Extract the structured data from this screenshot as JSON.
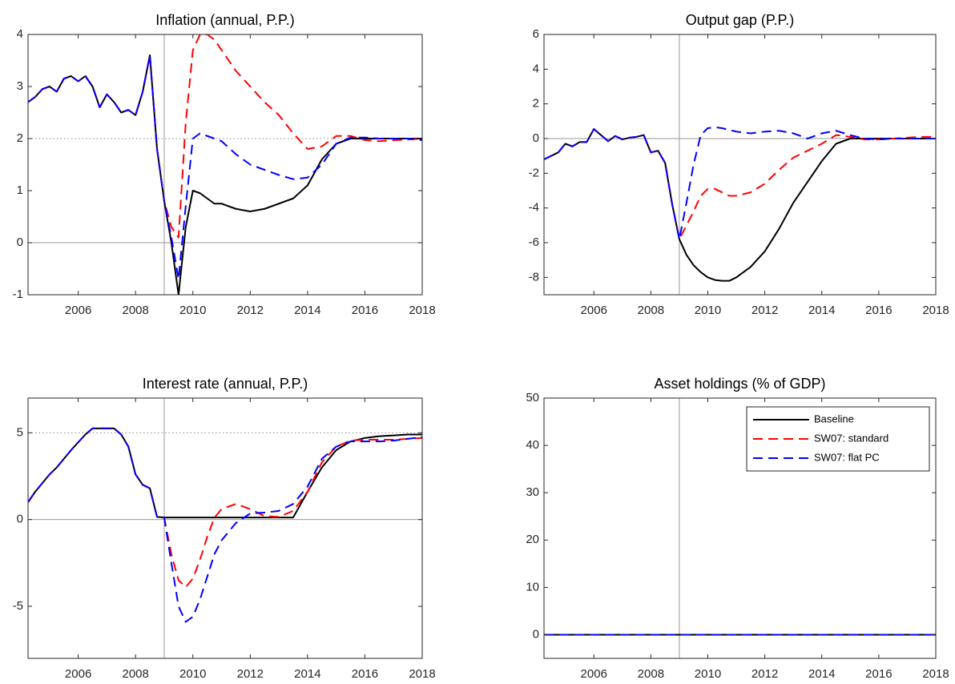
{
  "chart_data": [
    {
      "type": "line",
      "title": "Inflation (annual, P.P.)",
      "x": [
        2004.25,
        2004.5,
        2004.75,
        2005,
        2005.25,
        2005.5,
        2005.75,
        2006,
        2006.25,
        2006.5,
        2006.75,
        2007,
        2007.25,
        2007.5,
        2007.75,
        2008,
        2008.25,
        2008.5,
        2008.75,
        2009,
        2009.25,
        2009.5,
        2009.75,
        2010,
        2010.25,
        2010.5,
        2010.75,
        2011,
        2011.5,
        2012,
        2012.5,
        2013,
        2013.5,
        2014,
        2014.5,
        2015,
        2015.5,
        2016,
        2016.5,
        2017,
        2017.5,
        2018
      ],
      "xlim": [
        2004.25,
        2018
      ],
      "xticks": [
        2006,
        2008,
        2010,
        2012,
        2014,
        2016,
        2018
      ],
      "ylim": [
        -1,
        4
      ],
      "yticks": [
        -1,
        0,
        1,
        2,
        3,
        4
      ],
      "vline": 2009,
      "hlines": [
        {
          "value": 2,
          "style": "dotted"
        },
        {
          "value": 0,
          "style": "solid"
        }
      ],
      "series": [
        {
          "color": "#000000",
          "dash": "solid",
          "values": [
            2.7,
            2.8,
            2.95,
            3.0,
            2.9,
            3.15,
            3.2,
            3.1,
            3.2,
            3.0,
            2.6,
            2.85,
            2.7,
            2.5,
            2.55,
            2.45,
            2.9,
            3.6,
            1.8,
            0.8,
            0.0,
            -1.0,
            0.3,
            1.0,
            0.95,
            0.85,
            0.75,
            0.75,
            0.65,
            0.6,
            0.65,
            0.75,
            0.85,
            1.1,
            1.6,
            1.9,
            2.0,
            2.0,
            2.0,
            2.0,
            2.0,
            2.0
          ]
        },
        {
          "color": "#ff0000",
          "dash": "dashed",
          "values": [
            2.7,
            2.8,
            2.95,
            3.0,
            2.9,
            3.15,
            3.2,
            3.1,
            3.2,
            3.0,
            2.6,
            2.85,
            2.7,
            2.5,
            2.55,
            2.45,
            2.9,
            3.6,
            1.8,
            0.8,
            0.3,
            0.1,
            2.3,
            3.7,
            4.0,
            4.0,
            3.9,
            3.7,
            3.3,
            3.0,
            2.7,
            2.45,
            2.1,
            1.8,
            1.85,
            2.05,
            2.05,
            1.97,
            1.95,
            1.97,
            1.98,
            2.0
          ]
        },
        {
          "color": "#0000ff",
          "dash": "dashed",
          "values": [
            2.7,
            2.8,
            2.95,
            3.0,
            2.9,
            3.15,
            3.2,
            3.1,
            3.2,
            3.0,
            2.6,
            2.85,
            2.7,
            2.5,
            2.55,
            2.45,
            2.9,
            3.6,
            1.8,
            0.8,
            0.1,
            -0.7,
            0.7,
            2.0,
            2.1,
            2.05,
            2.0,
            1.95,
            1.7,
            1.5,
            1.4,
            1.3,
            1.22,
            1.25,
            1.5,
            1.9,
            2.02,
            2.02,
            2.0,
            2.0,
            2.0,
            1.97
          ]
        }
      ]
    },
    {
      "type": "line",
      "title": "Output gap (P.P.)",
      "x": [
        2004.25,
        2004.5,
        2004.75,
        2005,
        2005.25,
        2005.5,
        2005.75,
        2006,
        2006.25,
        2006.5,
        2006.75,
        2007,
        2007.25,
        2007.5,
        2007.75,
        2008,
        2008.25,
        2008.5,
        2008.75,
        2009,
        2009.25,
        2009.5,
        2009.75,
        2010,
        2010.25,
        2010.5,
        2010.75,
        2011,
        2011.5,
        2012,
        2012.5,
        2013,
        2013.5,
        2014,
        2014.5,
        2015,
        2015.5,
        2016,
        2016.5,
        2017,
        2017.5,
        2018
      ],
      "xlim": [
        2004.25,
        2018
      ],
      "xticks": [
        2006,
        2008,
        2010,
        2012,
        2014,
        2016,
        2018
      ],
      "ylim": [
        -9,
        6
      ],
      "yticks": [
        -8,
        -6,
        -4,
        -2,
        0,
        2,
        4,
        6
      ],
      "vline": 2009,
      "hlines": [
        {
          "value": 0,
          "style": "solid"
        }
      ],
      "series": [
        {
          "color": "#000000",
          "dash": "solid",
          "values": [
            -1.2,
            -1.0,
            -0.8,
            -0.3,
            -0.45,
            -0.2,
            -0.2,
            0.55,
            0.2,
            -0.15,
            0.15,
            -0.05,
            0.05,
            0.1,
            0.2,
            -0.8,
            -0.7,
            -1.4,
            -3.8,
            -5.8,
            -6.7,
            -7.3,
            -7.7,
            -8.0,
            -8.15,
            -8.2,
            -8.2,
            -8.0,
            -7.4,
            -6.5,
            -5.2,
            -3.7,
            -2.5,
            -1.3,
            -0.3,
            0,
            0,
            0,
            0,
            0,
            0,
            0
          ]
        },
        {
          "color": "#ff0000",
          "dash": "dashed",
          "values": [
            -1.2,
            -1.0,
            -0.8,
            -0.3,
            -0.45,
            -0.2,
            -0.2,
            0.55,
            0.2,
            -0.15,
            0.15,
            -0.05,
            0.05,
            0.1,
            0.2,
            -0.8,
            -0.7,
            -1.4,
            -3.8,
            -5.8,
            -5.0,
            -4.2,
            -3.3,
            -2.9,
            -2.9,
            -3.1,
            -3.3,
            -3.3,
            -3.1,
            -2.6,
            -1.8,
            -1.1,
            -0.7,
            -0.3,
            0.2,
            0.1,
            -0.05,
            -0.05,
            0.0,
            0.05,
            0.1,
            0.1
          ]
        },
        {
          "color": "#0000ff",
          "dash": "dashed",
          "values": [
            -1.2,
            -1.0,
            -0.8,
            -0.3,
            -0.45,
            -0.2,
            -0.2,
            0.55,
            0.2,
            -0.15,
            0.15,
            -0.05,
            0.05,
            0.1,
            0.2,
            -0.8,
            -0.7,
            -1.4,
            -3.8,
            -5.8,
            -3.7,
            -1.5,
            0.2,
            0.6,
            0.65,
            0.6,
            0.5,
            0.4,
            0.3,
            0.4,
            0.45,
            0.3,
            0.0,
            0.3,
            0.45,
            0.2,
            0.0,
            -0.05,
            0.0,
            0.0,
            0.0,
            0.0
          ]
        }
      ]
    },
    {
      "type": "line",
      "title": "Interest rate (annual, P.P.)",
      "x": [
        2004.25,
        2004.5,
        2004.75,
        2005,
        2005.25,
        2005.5,
        2005.75,
        2006,
        2006.25,
        2006.5,
        2006.75,
        2007,
        2007.25,
        2007.5,
        2007.75,
        2008,
        2008.25,
        2008.5,
        2008.75,
        2009,
        2009.25,
        2009.5,
        2009.75,
        2010,
        2010.25,
        2010.5,
        2010.75,
        2011,
        2011.5,
        2012,
        2012.5,
        2013,
        2013.5,
        2014,
        2014.5,
        2015,
        2015.5,
        2016,
        2016.5,
        2017,
        2017.5,
        2018
      ],
      "xlim": [
        2004.25,
        2018
      ],
      "xticks": [
        2006,
        2008,
        2010,
        2012,
        2014,
        2016,
        2018
      ],
      "ylim": [
        -8,
        7
      ],
      "yticks": [
        -5,
        0,
        5
      ],
      "vline": 2009,
      "hlines": [
        {
          "value": 5,
          "style": "dotted"
        },
        {
          "value": 0,
          "style": "solid"
        }
      ],
      "series": [
        {
          "color": "#000000",
          "dash": "solid",
          "values": [
            1.0,
            1.6,
            2.1,
            2.6,
            3.0,
            3.5,
            4.0,
            4.45,
            4.9,
            5.25,
            5.25,
            5.25,
            5.25,
            4.9,
            4.2,
            2.6,
            2.0,
            1.8,
            0.15,
            0.12,
            0.12,
            0.12,
            0.12,
            0.12,
            0.12,
            0.12,
            0.12,
            0.12,
            0.12,
            0.12,
            0.12,
            0.12,
            0.12,
            1.6,
            3.0,
            4.0,
            4.5,
            4.7,
            4.8,
            4.85,
            4.9,
            4.9
          ]
        },
        {
          "color": "#ff0000",
          "dash": "dashed",
          "values": [
            1.0,
            1.6,
            2.1,
            2.6,
            3.0,
            3.5,
            4.0,
            4.45,
            4.9,
            5.25,
            5.25,
            5.25,
            5.25,
            4.9,
            4.2,
            2.6,
            2.0,
            1.8,
            0.15,
            0.1,
            -2.0,
            -3.5,
            -3.9,
            -3.4,
            -2.3,
            -1.0,
            0.1,
            0.6,
            0.9,
            0.6,
            0.2,
            0.15,
            0.5,
            1.6,
            3.3,
            4.2,
            4.55,
            4.6,
            4.6,
            4.6,
            4.65,
            4.7
          ]
        },
        {
          "color": "#0000ff",
          "dash": "dashed",
          "values": [
            1.0,
            1.6,
            2.1,
            2.6,
            3.0,
            3.5,
            4.0,
            4.45,
            4.9,
            5.25,
            5.25,
            5.25,
            5.25,
            4.9,
            4.2,
            2.6,
            2.0,
            1.8,
            0.15,
            0.1,
            -2.5,
            -5.0,
            -5.9,
            -5.6,
            -4.6,
            -3.3,
            -2.0,
            -1.2,
            -0.2,
            0.35,
            0.4,
            0.5,
            0.9,
            1.9,
            3.5,
            4.2,
            4.5,
            4.5,
            4.5,
            4.55,
            4.65,
            4.75
          ]
        }
      ]
    },
    {
      "type": "line",
      "title": "Asset holdings (% of GDP)",
      "x": [
        2004.25,
        2004.5,
        2004.75,
        2005,
        2005.25,
        2005.5,
        2005.75,
        2006,
        2006.25,
        2006.5,
        2006.75,
        2007,
        2007.25,
        2007.5,
        2007.75,
        2008,
        2008.25,
        2008.5,
        2008.75,
        2009,
        2009.25,
        2009.5,
        2009.75,
        2010,
        2010.25,
        2010.5,
        2010.75,
        2011,
        2011.5,
        2012,
        2012.5,
        2013,
        2013.5,
        2014,
        2014.5,
        2015,
        2015.5,
        2016,
        2016.5,
        2017,
        2017.5,
        2018
      ],
      "xlim": [
        2004.25,
        2018
      ],
      "xticks": [
        2006,
        2008,
        2010,
        2012,
        2014,
        2016,
        2018
      ],
      "ylim": [
        -5,
        50
      ],
      "yticks": [
        0,
        10,
        20,
        30,
        40,
        50
      ],
      "vline": 2009,
      "hlines": [
        {
          "value": 0,
          "style": "solid"
        }
      ],
      "legend": "upper right",
      "series": [
        {
          "name": "Baseline",
          "color": "#000000",
          "dash": "solid",
          "values": [
            0,
            0,
            0,
            0,
            0,
            0,
            0,
            0,
            0,
            0,
            0,
            0,
            0,
            0,
            0,
            0,
            0,
            0,
            0,
            0,
            0,
            0,
            0,
            0,
            0,
            0,
            0,
            0,
            0,
            0,
            0,
            0,
            0,
            0,
            0,
            0,
            0,
            0,
            0,
            0,
            0,
            0
          ]
        },
        {
          "name": "SW07: standard",
          "color": "#ff0000",
          "dash": "dashed",
          "values": [
            0,
            0,
            0,
            0,
            0,
            0,
            0,
            0,
            0,
            0,
            0,
            0,
            0,
            0,
            0,
            0,
            0,
            0,
            0,
            0,
            0,
            0,
            0,
            0,
            0,
            0,
            0,
            0,
            0,
            0,
            0,
            0,
            0,
            0,
            0,
            0,
            0,
            0,
            0,
            0,
            0,
            0
          ]
        },
        {
          "name": "SW07: flat PC",
          "color": "#0000ff",
          "dash": "dashed",
          "values": [
            0,
            0,
            0,
            0,
            0,
            0,
            0,
            0,
            0,
            0,
            0,
            0,
            0,
            0,
            0,
            0,
            0,
            0,
            0,
            0,
            0,
            0,
            0,
            0,
            0,
            0,
            0,
            0,
            0,
            0,
            0,
            0,
            0,
            0,
            0,
            0,
            0,
            0,
            0,
            0,
            0,
            0
          ]
        }
      ]
    }
  ]
}
